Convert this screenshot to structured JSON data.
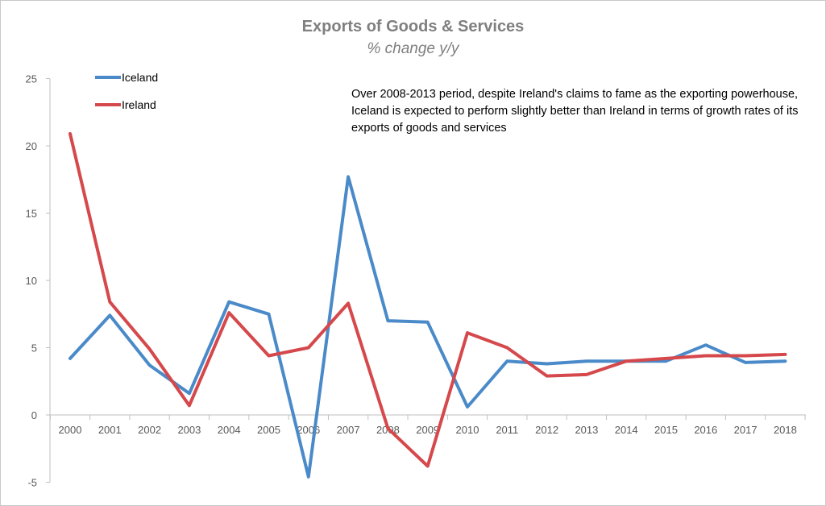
{
  "chart_data": {
    "type": "line",
    "title": "Exports of Goods & Services",
    "subtitle": "% change y/y",
    "annotation": "Over 2008-2013 period, despite Ireland's claims to fame as the exporting powerhouse, Iceland is expected to perform slightly better than Ireland in terms of growth rates of its exports of goods and services",
    "xlabel": "",
    "ylabel": "",
    "categories": [
      "2000",
      "2001",
      "2002",
      "2003",
      "2004",
      "2005",
      "2006",
      "2007",
      "2008",
      "2009",
      "2010",
      "2011",
      "2012",
      "2013",
      "2014",
      "2015",
      "2016",
      "2017",
      "2018"
    ],
    "ylim": [
      -5,
      25
    ],
    "yticks": [
      -5,
      0,
      5,
      10,
      15,
      20,
      25
    ],
    "grid": false,
    "legend_position": "top-left",
    "series": [
      {
        "name": "Iceland",
        "color": "#4a8ac9",
        "values": [
          4.2,
          7.4,
          3.7,
          1.6,
          8.4,
          7.5,
          -4.6,
          17.7,
          7.0,
          6.9,
          0.6,
          4.0,
          3.8,
          4.0,
          4.0,
          4.0,
          5.2,
          3.9,
          4.0
        ]
      },
      {
        "name": "Ireland",
        "color": "#d5484b",
        "values": [
          20.9,
          8.4,
          4.9,
          0.7,
          7.6,
          4.4,
          5.0,
          8.3,
          -1.0,
          -3.8,
          6.1,
          5.0,
          2.9,
          3.0,
          4.0,
          4.2,
          4.4,
          4.4,
          4.5
        ]
      }
    ]
  }
}
